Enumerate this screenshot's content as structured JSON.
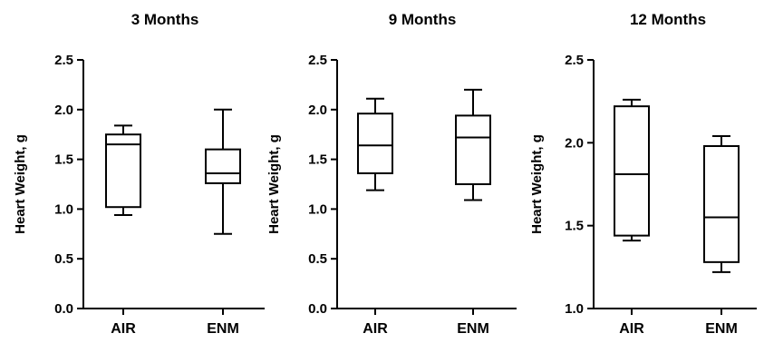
{
  "chart_data": [
    {
      "type": "box",
      "title": "3  Months",
      "ylabel": "Heart Weight, g",
      "ylim": [
        0,
        2.5
      ],
      "yticks": [
        "0.0",
        "0.5",
        "1.0",
        "1.5",
        "2.0",
        "2.5"
      ],
      "categories": [
        "AIR",
        "ENM"
      ],
      "boxes": [
        {
          "name": "AIR",
          "min": 0.94,
          "q1": 1.02,
          "median": 1.65,
          "q3": 1.75,
          "max": 1.84
        },
        {
          "name": "ENM",
          "min": 0.75,
          "q1": 1.26,
          "median": 1.36,
          "q3": 1.6,
          "max": 2.0
        }
      ]
    },
    {
      "type": "box",
      "title": "9 Months",
      "ylabel": "Heart Weight, g",
      "ylim": [
        0,
        2.5
      ],
      "yticks": [
        "0.0",
        "0.5",
        "1.0",
        "1.5",
        "2.0",
        "2.5"
      ],
      "categories": [
        "AIR",
        "ENM"
      ],
      "boxes": [
        {
          "name": "AIR",
          "min": 1.19,
          "q1": 1.36,
          "median": 1.64,
          "q3": 1.96,
          "max": 2.11
        },
        {
          "name": "ENM",
          "min": 1.09,
          "q1": 1.25,
          "median": 1.72,
          "q3": 1.94,
          "max": 2.2
        }
      ]
    },
    {
      "type": "box",
      "title": "12 Months",
      "ylabel": "Heart Weight, g",
      "ylim": [
        1.0,
        2.5
      ],
      "yticks": [
        "1.0",
        "1.5",
        "2.0",
        "2.5"
      ],
      "categories": [
        "AIR",
        "ENM"
      ],
      "boxes": [
        {
          "name": "AIR",
          "min": 1.41,
          "q1": 1.44,
          "median": 1.81,
          "q3": 2.22,
          "max": 2.26
        },
        {
          "name": "ENM",
          "min": 1.22,
          "q1": 1.28,
          "median": 1.55,
          "q3": 1.98,
          "max": 2.04
        }
      ]
    }
  ]
}
